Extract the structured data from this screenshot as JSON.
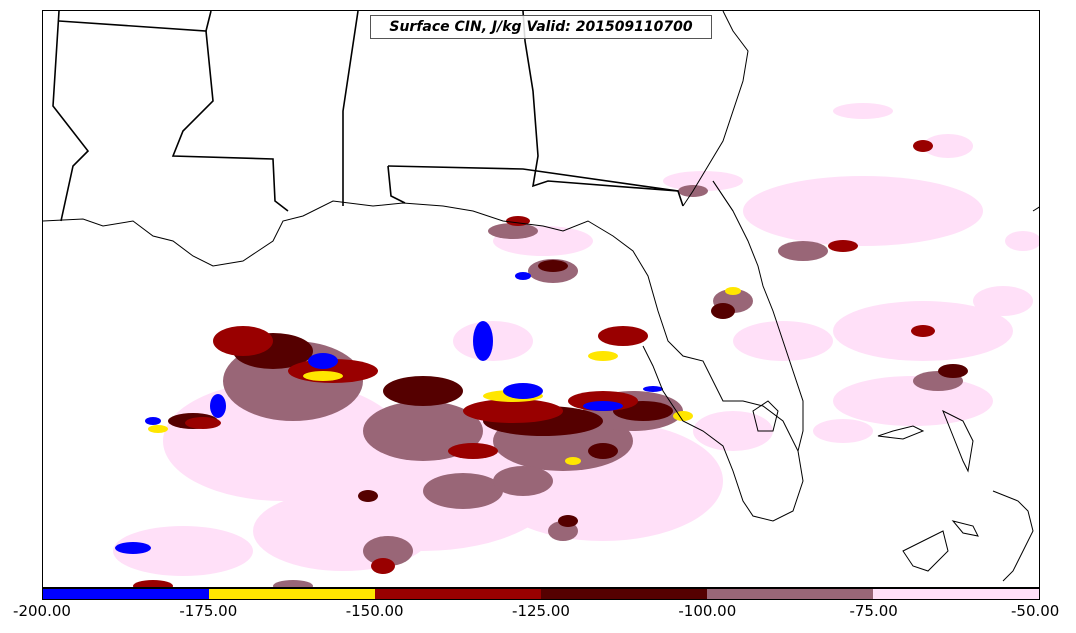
{
  "title": "Surface CIN, J/kg Valid: 201509110700",
  "colorbar": {
    "colors": [
      "#0000ff",
      "#ffe600",
      "#990000",
      "#550000",
      "#996677",
      "#ffe0f8"
    ],
    "tick_labels": [
      "-200.00",
      "-175.00",
      "-150.00",
      "-125.00",
      "-100.00",
      "-75.00",
      "-50.00"
    ]
  },
  "chart_data": {
    "type": "heatmap",
    "title": "Surface CIN, J/kg Valid: 201509110700",
    "levels": [
      -200,
      -175,
      -150,
      -125,
      -100,
      -75,
      -50
    ],
    "level_colors": [
      "#0000ff",
      "#ffe600",
      "#990000",
      "#550000",
      "#996677",
      "#ffe0f8"
    ]
  }
}
